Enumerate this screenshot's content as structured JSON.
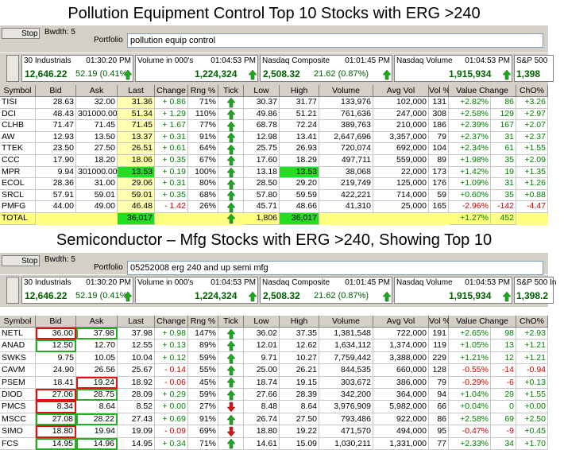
{
  "sections": [
    {
      "title": "Pollution Equipment Control Top 10 Stocks with ERG >240",
      "toolbar": {
        "stop": "Stop",
        "bandwidth": "Bwdth: 5",
        "portfolio_label": "Portfolio",
        "portfolio": "pollution equip control"
      },
      "tickers": [
        {
          "name": "30 Industrials",
          "time": "01:30:20 PM",
          "value": "12,646.22",
          "change": "52.19 (0.41%)"
        },
        {
          "name": "Volume in 000's",
          "time": "01:04:53 PM",
          "value": "1,224,324"
        },
        {
          "name": "Nasdaq Composite",
          "time": "01:01:45 PM",
          "value": "2,508.32",
          "change": "21.62 (0.87%)"
        },
        {
          "name": "Nasdaq Volume",
          "time": "01:04:53 PM",
          "value": "1,915,934"
        },
        {
          "name": "S&P 500",
          "value": "1,398"
        }
      ],
      "columns": [
        "Symbol",
        "Bid",
        "Ask",
        "Last",
        "Change",
        "Rng %",
        "Tick",
        "Low",
        "High",
        "Volume",
        "Avg Vol",
        "Vol %",
        "Value Change",
        "ChO%"
      ],
      "column_fill": {
        "3": "#ffffb0"
      },
      "rows": [
        {
          "cells": [
            "TISI",
            "28.63",
            "32.00",
            "31.36",
            "+ 0.86",
            "71%",
            "30.37",
            "31.77",
            "133,976",
            "102,000",
            "131",
            "+2.82%",
            "86",
            "+3.26"
          ],
          "tick": "up"
        },
        {
          "cells": [
            "DCI",
            "48.43",
            "301000.00",
            "51.34",
            "+ 1.29",
            "110%",
            "49.86",
            "51.21",
            "761,636",
            "247,000",
            "308",
            "+2.58%",
            "129",
            "+2.97"
          ],
          "tick": "up"
        },
        {
          "cells": [
            "CLHB",
            "71.47",
            "71.45",
            "71.45",
            "+ 1.67",
            "77%",
            "68.78",
            "72.24",
            "389,763",
            "210,000",
            "186",
            "+2.39%",
            "167",
            "+2.07"
          ],
          "tick": "up"
        },
        {
          "cells": [
            "AW",
            "12.93",
            "13.50",
            "13.37",
            "+ 0.31",
            "91%",
            "12.98",
            "13.41",
            "2,647,696",
            "3,357,000",
            "79",
            "+2.37%",
            "31",
            "+2.37"
          ],
          "tick": "up"
        },
        {
          "cells": [
            "TTEK",
            "23.50",
            "27.50",
            "26.51",
            "+ 0.61",
            "64%",
            "25.75",
            "26.93",
            "720,074",
            "692,000",
            "104",
            "+2.34%",
            "61",
            "+1.55"
          ],
          "tick": "up"
        },
        {
          "cells": [
            "CCC",
            "17.90",
            "18.20",
            "18.06",
            "+ 0.35",
            "67%",
            "17.60",
            "18.29",
            "497,711",
            "559,000",
            "89",
            "+1.98%",
            "35",
            "+2.09"
          ],
          "tick": "up"
        },
        {
          "cells": [
            "MPR",
            "9.94",
            "301000.00",
            "13.53",
            "+ 0.19",
            "100%",
            "13.18",
            "13.53",
            "38,068",
            "22,000",
            "173",
            "+1.42%",
            "19",
            "+1.35"
          ],
          "tick": "up",
          "fill": {
            "3": "#22dd22",
            "7": "#22dd22"
          }
        },
        {
          "cells": [
            "ECOL",
            "28.36",
            "31.00",
            "29.06",
            "+ 0.31",
            "80%",
            "28.50",
            "29.20",
            "219,749",
            "125,000",
            "176",
            "+1.09%",
            "31",
            "+1.26"
          ],
          "tick": "up"
        },
        {
          "cells": [
            "SRCL",
            "57.91",
            "59.01",
            "59.01",
            "+ 0.35",
            "68%",
            "57.80",
            "59.59",
            "422,221",
            "714,000",
            "59",
            "+0.60%",
            "35",
            "+0.88"
          ],
          "tick": "up"
        },
        {
          "cells": [
            "PMFG",
            "44.00",
            "49.00",
            "46.48",
            "- 1.42",
            "26%",
            "45.71",
            "48.66",
            "41,310",
            "25,000",
            "165",
            "-2.96%",
            "-142",
            "-4.47"
          ],
          "tick": "up"
        }
      ],
      "total": {
        "label": "TOTAL",
        "last": "36,017",
        "tick": "up",
        "low": "1,806",
        "high": "36,017",
        "value_change_pct": "+1.27%",
        "value_change": "452"
      }
    },
    {
      "title": "Semiconductor – Mfg Stocks with ERG >240, Showing Top 10",
      "toolbar": {
        "stop": "Stop",
        "bandwidth": "Bwdth: 5",
        "portfolio_label": "Portfolio",
        "portfolio": "05252008 erg 240 and up semi mfg"
      },
      "tickers": [
        {
          "name": "30 Industrials",
          "time": "01:30:20 PM",
          "value": "12,646.22",
          "change": "52.19 (0.41%)"
        },
        {
          "name": "Volume in 000's",
          "time": "01:04:53 PM",
          "value": "1,224,324"
        },
        {
          "name": "Nasdaq Composite",
          "time": "01:01:45 PM",
          "value": "2,508.32",
          "change": "21.62 (0.87%)"
        },
        {
          "name": "Nasdaq Volume",
          "time": "01:04:53 PM",
          "value": "1,915,934"
        },
        {
          "name": "S&P 500 In",
          "value": "1,398.2"
        }
      ],
      "columns": [
        "Symbol",
        "Bid",
        "Ask",
        "Last",
        "Change",
        "Rng %",
        "Tick",
        "Low",
        "High",
        "Volume",
        "Avg Vol",
        "Vol %",
        "Value Change",
        "ChO%"
      ],
      "rows": [
        {
          "cells": [
            "NETL",
            "36.00",
            "37.98",
            "37.98",
            "+ 0.98",
            "147%",
            "36.02",
            "37.35",
            "1,381,548",
            "722,000",
            "191",
            "+2.65%",
            "98",
            "+2.93"
          ],
          "tick": "up",
          "border": {
            "1": "#e01010",
            "2": "#22b022"
          }
        },
        {
          "cells": [
            "ANAD",
            "12.50",
            "12.70",
            "12.55",
            "+ 0.13",
            "89%",
            "12.01",
            "12.62",
            "1,634,112",
            "1,374,000",
            "119",
            "+1.05%",
            "13",
            "+1.21"
          ],
          "tick": "up",
          "border": {
            "1": "#22b022"
          }
        },
        {
          "cells": [
            "SWKS",
            "9.75",
            "10.05",
            "10.04",
            "+ 0.12",
            "59%",
            "9.71",
            "10.27",
            "7,759,442",
            "3,388,000",
            "229",
            "+1.21%",
            "12",
            "+1.21"
          ],
          "tick": "up"
        },
        {
          "cells": [
            "CAVM",
            "24.90",
            "26.56",
            "25.67",
            "- 0.14",
            "55%",
            "25.00",
            "26.21",
            "844,535",
            "660,000",
            "128",
            "-0.55%",
            "-14",
            "-0.94"
          ],
          "tick": "up"
        },
        {
          "cells": [
            "PSEM",
            "18.41",
            "19.24",
            "18.92",
            "- 0.06",
            "45%",
            "18.74",
            "19.15",
            "303,672",
            "386,000",
            "79",
            "-0.29%",
            "-6",
            "+0.13"
          ],
          "tick": "up",
          "border": {
            "2": "#e01010"
          }
        },
        {
          "cells": [
            "DIOD",
            "27.06",
            "28.75",
            "28.09",
            "+ 0.29",
            "59%",
            "27.66",
            "28.39",
            "342,200",
            "364,000",
            "94",
            "+1.04%",
            "29",
            "+1.55"
          ],
          "tick": "up",
          "border": {
            "1": "#e01010",
            "2": "#22b022"
          }
        },
        {
          "cells": [
            "PMCS",
            "8.34",
            "8.64",
            "8.52",
            "+ 0.00",
            "27%",
            "8.48",
            "8.64",
            "3,976,909",
            "5,982,000",
            "66",
            "+0.04%",
            "0",
            "+0.00"
          ],
          "tick": "down",
          "border": {
            "1": "#e01010"
          }
        },
        {
          "cells": [
            "MSCC",
            "27.08",
            "28.22",
            "27.43",
            "+ 0.69",
            "91%",
            "26.74",
            "27.50",
            "793,486",
            "922,000",
            "86",
            "+2.58%",
            "69",
            "+2.50"
          ],
          "tick": "up",
          "border": {
            "1": "#22b022",
            "2": "#22b022"
          }
        },
        {
          "cells": [
            "SIMO",
            "18.80",
            "19.94",
            "19.09",
            "- 0.09",
            "69%",
            "18.80",
            "19.22",
            "471,570",
            "494,000",
            "95",
            "-0.47%",
            "-9",
            "+0.45"
          ],
          "tick": "down",
          "border": {
            "1": "#e01010"
          }
        },
        {
          "cells": [
            "FCS",
            "14.95",
            "14.96",
            "14.95",
            "+ 0.34",
            "71%",
            "14.61",
            "15.09",
            "1,030,211",
            "1,331,000",
            "77",
            "+2.33%",
            "34",
            "+1.70"
          ],
          "tick": "up",
          "border": {
            "1": "#22b022",
            "2": "#22b022"
          }
        }
      ]
    }
  ]
}
